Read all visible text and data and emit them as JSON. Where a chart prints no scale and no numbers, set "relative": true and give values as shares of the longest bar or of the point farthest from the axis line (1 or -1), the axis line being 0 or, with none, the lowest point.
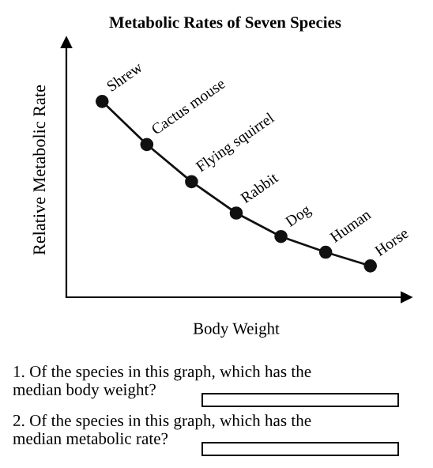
{
  "chart_data": {
    "type": "line",
    "title": "Metabolic Rates of Seven Species",
    "xlabel": "Body Weight",
    "ylabel": "Relative Metabolic Rate",
    "relative": true,
    "categories": [
      null,
      null,
      null,
      null,
      null,
      null,
      null
    ],
    "grid": false,
    "legend": false,
    "marker": "circle",
    "line_style": "solid",
    "series": [
      {
        "color": "#111111",
        "values": [
          1,
          0.78,
          0.59,
          0.43,
          0.31,
          0.23,
          0.16
        ]
      }
    ],
    "annotations": [
      "Shrew",
      "Cactus mouse",
      "Flying squirrel",
      "Rabbit",
      "Dog",
      "Human",
      "Horse",
      "1. Of the species in this graph, which has the\nmedian body weight?",
      "2. Of the species in this graph, which has the\nmedian metabolic rate?"
    ]
  }
}
